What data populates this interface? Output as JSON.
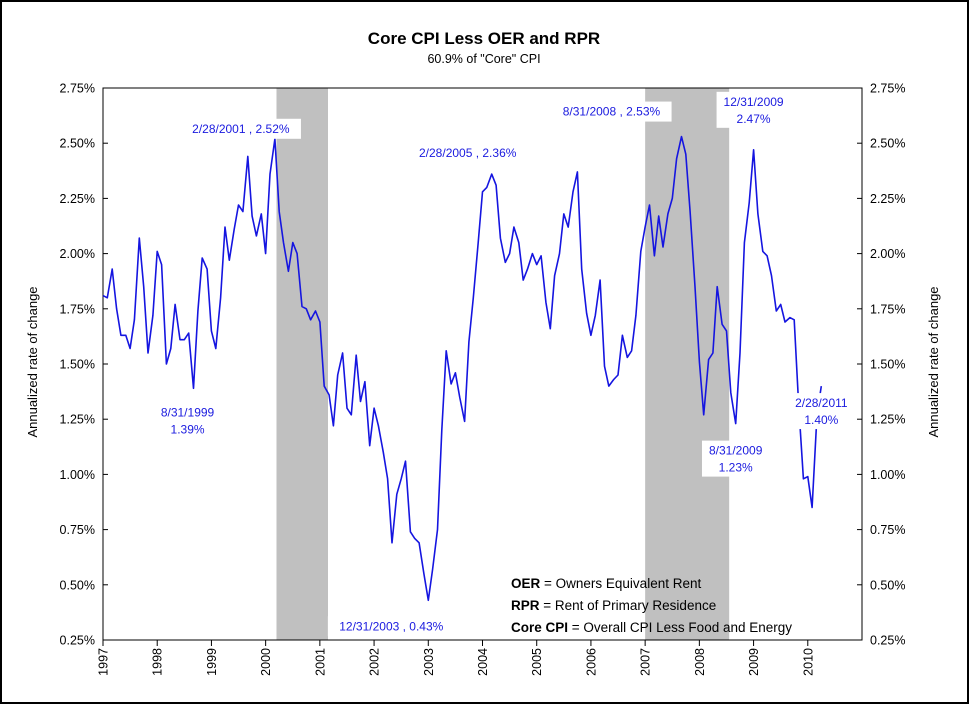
{
  "chart_data": {
    "type": "line",
    "title": "Core CPI Less OER and RPR",
    "subtitle": "60.9% of \"Core\" CPI",
    "ylabel_left": "Annualized rate of change",
    "ylabel_right": "Annualized rate of change",
    "ylim": [
      0.25,
      2.75
    ],
    "y_ticks": [
      "0.25%",
      "0.50%",
      "0.75%",
      "1.00%",
      "1.25%",
      "1.50%",
      "1.75%",
      "2.00%",
      "2.25%",
      "2.50%",
      "2.75%"
    ],
    "xlim": [
      1997.0,
      2011.0
    ],
    "x_ticks": [
      "1997",
      "1998",
      "1999",
      "2000",
      "2001",
      "2002",
      "2003",
      "2004",
      "2005",
      "2006",
      "2007",
      "2008",
      "2009",
      "2010"
    ],
    "series_color": "#1515e0",
    "recession_color": "#c0c0c0",
    "recessions": [
      [
        2000.2,
        2001.15
      ],
      [
        2007.0,
        2008.55
      ]
    ],
    "series": [
      {
        "name": "",
        "values": [
          [
            1997.0,
            1.81
          ],
          [
            1997.08,
            1.8
          ],
          [
            1997.17,
            1.93
          ],
          [
            1997.25,
            1.75
          ],
          [
            1997.33,
            1.63
          ],
          [
            1997.42,
            1.63
          ],
          [
            1997.5,
            1.57
          ],
          [
            1997.58,
            1.7
          ],
          [
            1997.67,
            2.07
          ],
          [
            1997.75,
            1.85
          ],
          [
            1997.83,
            1.55
          ],
          [
            1997.92,
            1.72
          ],
          [
            1998.0,
            2.01
          ],
          [
            1998.08,
            1.95
          ],
          [
            1998.17,
            1.5
          ],
          [
            1998.25,
            1.57
          ],
          [
            1998.33,
            1.77
          ],
          [
            1998.42,
            1.61
          ],
          [
            1998.5,
            1.61
          ],
          [
            1998.58,
            1.64
          ],
          [
            1998.67,
            1.39
          ],
          [
            1998.75,
            1.74
          ],
          [
            1998.83,
            1.98
          ],
          [
            1998.92,
            1.93
          ],
          [
            1999.0,
            1.65
          ],
          [
            1999.08,
            1.57
          ],
          [
            1999.17,
            1.8
          ],
          [
            1999.25,
            2.12
          ],
          [
            1999.33,
            1.97
          ],
          [
            1999.42,
            2.11
          ],
          [
            1999.5,
            2.22
          ],
          [
            1999.58,
            2.19
          ],
          [
            1999.67,
            2.44
          ],
          [
            1999.75,
            2.17
          ],
          [
            1999.83,
            2.08
          ],
          [
            1999.92,
            2.18
          ],
          [
            2000.0,
            2.0
          ],
          [
            2000.08,
            2.36
          ],
          [
            2000.17,
            2.52
          ],
          [
            2000.25,
            2.19
          ],
          [
            2000.33,
            2.05
          ],
          [
            2000.42,
            1.92
          ],
          [
            2000.5,
            2.05
          ],
          [
            2000.58,
            2.0
          ],
          [
            2000.67,
            1.76
          ],
          [
            2000.75,
            1.75
          ],
          [
            2000.83,
            1.7
          ],
          [
            2000.92,
            1.74
          ],
          [
            2001.0,
            1.69
          ],
          [
            2001.08,
            1.4
          ],
          [
            2001.17,
            1.36
          ],
          [
            2001.25,
            1.22
          ],
          [
            2001.33,
            1.45
          ],
          [
            2001.42,
            1.55
          ],
          [
            2001.5,
            1.3
          ],
          [
            2001.58,
            1.27
          ],
          [
            2001.67,
            1.54
          ],
          [
            2001.75,
            1.33
          ],
          [
            2001.83,
            1.42
          ],
          [
            2001.92,
            1.13
          ],
          [
            2002.0,
            1.3
          ],
          [
            2002.08,
            1.22
          ],
          [
            2002.17,
            1.1
          ],
          [
            2002.25,
            0.98
          ],
          [
            2002.33,
            0.69
          ],
          [
            2002.42,
            0.91
          ],
          [
            2002.5,
            0.98
          ],
          [
            2002.58,
            1.06
          ],
          [
            2002.67,
            0.74
          ],
          [
            2002.75,
            0.71
          ],
          [
            2002.83,
            0.69
          ],
          [
            2002.92,
            0.55
          ],
          [
            2003.0,
            0.43
          ],
          [
            2003.08,
            0.57
          ],
          [
            2003.17,
            0.75
          ],
          [
            2003.25,
            1.2
          ],
          [
            2003.33,
            1.56
          ],
          [
            2003.42,
            1.41
          ],
          [
            2003.5,
            1.46
          ],
          [
            2003.58,
            1.35
          ],
          [
            2003.67,
            1.24
          ],
          [
            2003.75,
            1.6
          ],
          [
            2003.83,
            1.8
          ],
          [
            2003.92,
            2.05
          ],
          [
            2004.0,
            2.28
          ],
          [
            2004.08,
            2.3
          ],
          [
            2004.17,
            2.36
          ],
          [
            2004.25,
            2.31
          ],
          [
            2004.33,
            2.07
          ],
          [
            2004.42,
            1.96
          ],
          [
            2004.5,
            2.0
          ],
          [
            2004.58,
            2.12
          ],
          [
            2004.67,
            2.05
          ],
          [
            2004.75,
            1.88
          ],
          [
            2004.83,
            1.93
          ],
          [
            2004.92,
            2.0
          ],
          [
            2005.0,
            1.95
          ],
          [
            2005.08,
            1.99
          ],
          [
            2005.17,
            1.78
          ],
          [
            2005.25,
            1.66
          ],
          [
            2005.33,
            1.9
          ],
          [
            2005.42,
            2.0
          ],
          [
            2005.5,
            2.18
          ],
          [
            2005.58,
            2.12
          ],
          [
            2005.67,
            2.28
          ],
          [
            2005.75,
            2.37
          ],
          [
            2005.83,
            1.93
          ],
          [
            2005.92,
            1.73
          ],
          [
            2006.0,
            1.63
          ],
          [
            2006.08,
            1.72
          ],
          [
            2006.17,
            1.88
          ],
          [
            2006.25,
            1.49
          ],
          [
            2006.33,
            1.4
          ],
          [
            2006.42,
            1.43
          ],
          [
            2006.5,
            1.45
          ],
          [
            2006.58,
            1.63
          ],
          [
            2006.67,
            1.53
          ],
          [
            2006.75,
            1.56
          ],
          [
            2006.83,
            1.72
          ],
          [
            2006.92,
            2.01
          ],
          [
            2007.0,
            2.12
          ],
          [
            2007.08,
            2.22
          ],
          [
            2007.17,
            1.99
          ],
          [
            2007.25,
            2.17
          ],
          [
            2007.33,
            2.03
          ],
          [
            2007.42,
            2.18
          ],
          [
            2007.5,
            2.25
          ],
          [
            2007.58,
            2.43
          ],
          [
            2007.67,
            2.53
          ],
          [
            2007.75,
            2.45
          ],
          [
            2007.83,
            2.19
          ],
          [
            2007.92,
            1.85
          ],
          [
            2008.0,
            1.51
          ],
          [
            2008.08,
            1.27
          ],
          [
            2008.17,
            1.52
          ],
          [
            2008.25,
            1.55
          ],
          [
            2008.33,
            1.85
          ],
          [
            2008.42,
            1.68
          ],
          [
            2008.5,
            1.65
          ],
          [
            2008.58,
            1.37
          ],
          [
            2008.67,
            1.23
          ],
          [
            2008.75,
            1.55
          ],
          [
            2008.83,
            2.05
          ],
          [
            2008.92,
            2.23
          ],
          [
            2009.0,
            2.47
          ],
          [
            2009.08,
            2.18
          ],
          [
            2009.17,
            2.01
          ],
          [
            2009.25,
            1.99
          ],
          [
            2009.33,
            1.9
          ],
          [
            2009.42,
            1.74
          ],
          [
            2009.5,
            1.77
          ],
          [
            2009.58,
            1.69
          ],
          [
            2009.67,
            1.71
          ],
          [
            2009.75,
            1.7
          ],
          [
            2009.83,
            1.32
          ],
          [
            2009.92,
            0.98
          ],
          [
            2010.0,
            0.99
          ],
          [
            2010.08,
            0.85
          ],
          [
            2010.17,
            1.27
          ],
          [
            2010.25,
            1.4
          ]
        ]
      }
    ],
    "annotations": [
      {
        "lines": [
          "2/28/2001 , 2.52%"
        ],
        "x": 2000.17,
        "y": 2.52
      },
      {
        "lines": [
          "8/31/1999",
          "1.39%"
        ],
        "x": 1998.67,
        "y": 1.39
      },
      {
        "lines": [
          "2/28/2005 , 2.36%"
        ],
        "x": 2004.17,
        "y": 2.36
      },
      {
        "lines": [
          "12/31/2003 , 0.43%"
        ],
        "x": 2003.0,
        "y": 0.43
      },
      {
        "lines": [
          "8/31/2008 , 2.53%"
        ],
        "x": 2007.67,
        "y": 2.53
      },
      {
        "lines": [
          "12/31/2009",
          "2.47%"
        ],
        "x": 2009.0,
        "y": 2.47
      },
      {
        "lines": [
          "8/31/2009",
          "1.23%"
        ],
        "x": 2008.67,
        "y": 1.23
      },
      {
        "lines": [
          "2/28/2011",
          "1.40%"
        ],
        "x": 2010.25,
        "y": 1.4
      }
    ],
    "legend": [
      {
        "term": "OER",
        "definition": " = Owners Equivalent Rent"
      },
      {
        "term": "RPR",
        "definition": " = Rent of Primary Residence"
      },
      {
        "term": "Core CPI",
        "definition": " = Overall CPI Less Food and Energy"
      }
    ],
    "legend_placement": "bottom-right",
    "grid": false
  }
}
